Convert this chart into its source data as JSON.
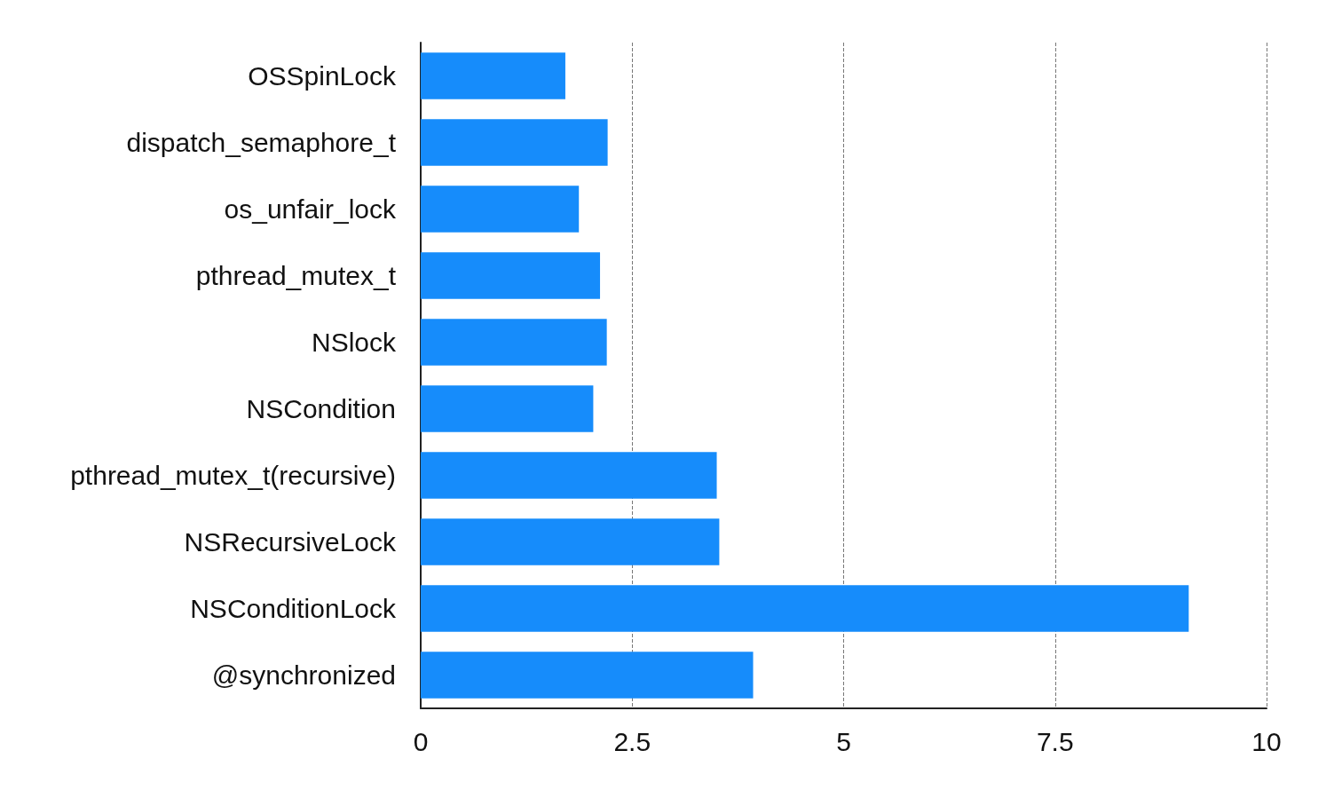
{
  "chart_data": {
    "type": "bar",
    "orientation": "horizontal",
    "categories": [
      "OSSpinLock",
      "dispatch_semaphore_t",
      "os_unfair_lock",
      "pthread_mutex_t",
      "NSlock",
      "NSCondition",
      "pthread_mutex_t(recursive)",
      "NSRecursiveLock",
      "NSConditionLock",
      "@synchronized"
    ],
    "values": [
      1.71,
      2.21,
      1.87,
      2.12,
      2.2,
      2.04,
      3.5,
      3.53,
      9.08,
      3.93
    ],
    "color": "#168cfb",
    "xlim": [
      0,
      10
    ],
    "xticks": [
      0,
      2.5,
      5,
      7.5,
      10
    ],
    "grid": "x"
  }
}
